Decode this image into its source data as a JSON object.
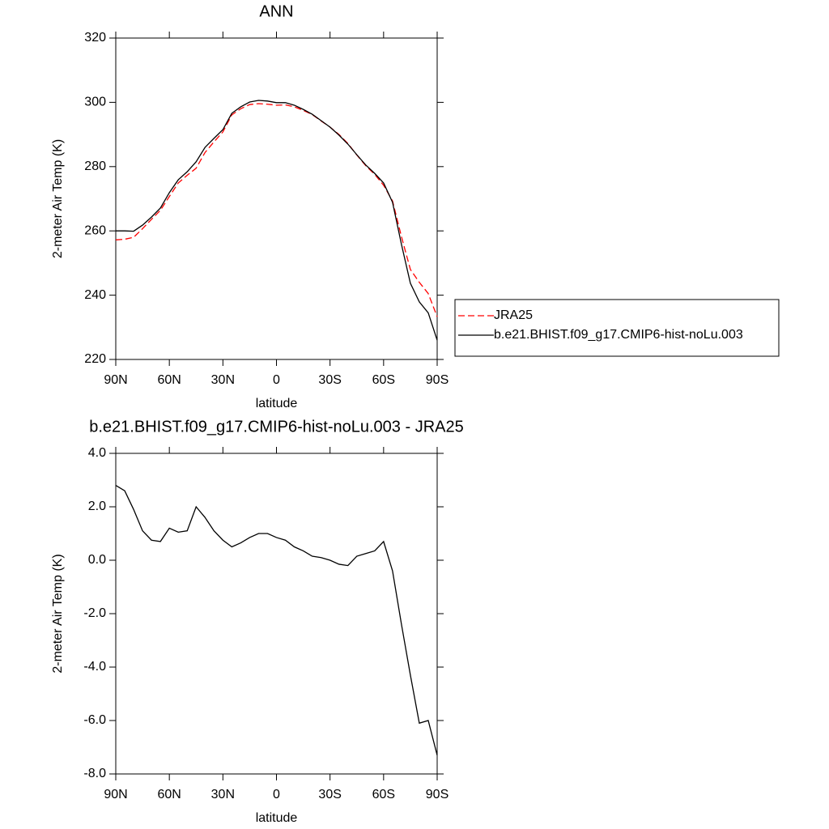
{
  "chart_data": [
    {
      "type": "line",
      "title": "ANN",
      "x_label": "latitude",
      "y_label": "2-meter Air Temp (K)",
      "x": [
        90,
        85,
        80,
        75,
        70,
        65,
        60,
        55,
        50,
        45,
        40,
        35,
        30,
        25,
        20,
        15,
        10,
        5,
        0,
        -5,
        -10,
        -15,
        -20,
        -25,
        -30,
        -35,
        -40,
        -45,
        -50,
        -55,
        -60,
        -65,
        -70,
        -75,
        -80,
        -85,
        -90
      ],
      "series": [
        {
          "name": "JRA25",
          "color": "#ff0000",
          "line_style": "dashed",
          "values": [
            257.2,
            257.4,
            258.0,
            260.7,
            263.6,
            266.4,
            270.7,
            274.9,
            277.3,
            279.5,
            284.4,
            287.7,
            290.8,
            296.1,
            298.0,
            299.3,
            299.6,
            299.4,
            299.1,
            299.2,
            298.6,
            297.5,
            296.2,
            294.2,
            292.3,
            290.0,
            287.2,
            283.6,
            280.3,
            277.6,
            274.2,
            269.3,
            258.2,
            248.0,
            244.0,
            240.5,
            233.3
          ]
        },
        {
          "name": "b.e21.BHIST.f09_g17.CMIP6-hist-noLu.003",
          "color": "#000000",
          "line_style": "solid",
          "values": [
            260.0,
            260.0,
            259.9,
            261.8,
            264.3,
            267.1,
            271.9,
            275.9,
            278.4,
            281.5,
            286.0,
            288.8,
            291.5,
            296.6,
            298.6,
            300.1,
            300.6,
            300.4,
            299.9,
            299.9,
            299.1,
            297.8,
            296.3,
            294.3,
            292.3,
            289.8,
            287.0,
            283.7,
            280.5,
            277.9,
            274.9,
            268.9,
            255.8,
            243.7,
            237.9,
            234.5,
            226.0
          ]
        }
      ],
      "xlim": [
        90,
        -90
      ],
      "xticks": [
        {
          "value": 90,
          "label": "90N"
        },
        {
          "value": 60,
          "label": "60N"
        },
        {
          "value": 30,
          "label": "30N"
        },
        0,
        {
          "value": -30,
          "label": "30S"
        },
        {
          "value": -60,
          "label": "60S"
        },
        {
          "value": -90,
          "label": "90S"
        }
      ],
      "ylim": [
        220,
        320
      ],
      "yticks": [
        220,
        240,
        260,
        280,
        300,
        320
      ],
      "legend_position": "right"
    },
    {
      "type": "line",
      "title": "b.e21.BHIST.f09_g17.CMIP6-hist-noLu.003 - JRA25",
      "x_label": "latitude",
      "y_label": "2-meter Air Temp (K)",
      "x": [
        90,
        85,
        80,
        75,
        70,
        65,
        60,
        55,
        50,
        45,
        40,
        35,
        30,
        25,
        20,
        15,
        10,
        5,
        0,
        -5,
        -10,
        -15,
        -20,
        -25,
        -30,
        -35,
        -40,
        -45,
        -50,
        -55,
        -60,
        -65,
        -70,
        -75,
        -80,
        -85,
        -90
      ],
      "values": [
        2.8,
        2.6,
        1.9,
        1.1,
        0.75,
        0.7,
        1.2,
        1.05,
        1.1,
        2.0,
        1.6,
        1.1,
        0.75,
        0.5,
        0.65,
        0.85,
        1.0,
        1.0,
        0.85,
        0.75,
        0.5,
        0.35,
        0.15,
        0.1,
        0.0,
        -0.15,
        -0.2,
        0.15,
        0.25,
        0.35,
        0.7,
        -0.4,
        -2.4,
        -4.3,
        -6.1,
        -6.0,
        -7.3
      ],
      "color": "#000000",
      "xlim": [
        90,
        -90
      ],
      "xticks": [
        {
          "value": 90,
          "label": "90N"
        },
        {
          "value": 60,
          "label": "60N"
        },
        {
          "value": 30,
          "label": "30N"
        },
        0,
        {
          "value": -30,
          "label": "30S"
        },
        {
          "value": -60,
          "label": "60S"
        },
        {
          "value": -90,
          "label": "90S"
        }
      ],
      "ylim": [
        -8,
        4
      ],
      "yticks": [
        {
          "value": -8,
          "label": "-8.0"
        },
        {
          "value": -6,
          "label": "-6.0"
        },
        {
          "value": -4,
          "label": "-4.0"
        },
        {
          "value": -2,
          "label": "-2.0"
        },
        {
          "value": 0,
          "label": "0.0"
        },
        {
          "value": 2,
          "label": "2.0"
        },
        {
          "value": 4,
          "label": "4.0"
        }
      ]
    }
  ]
}
